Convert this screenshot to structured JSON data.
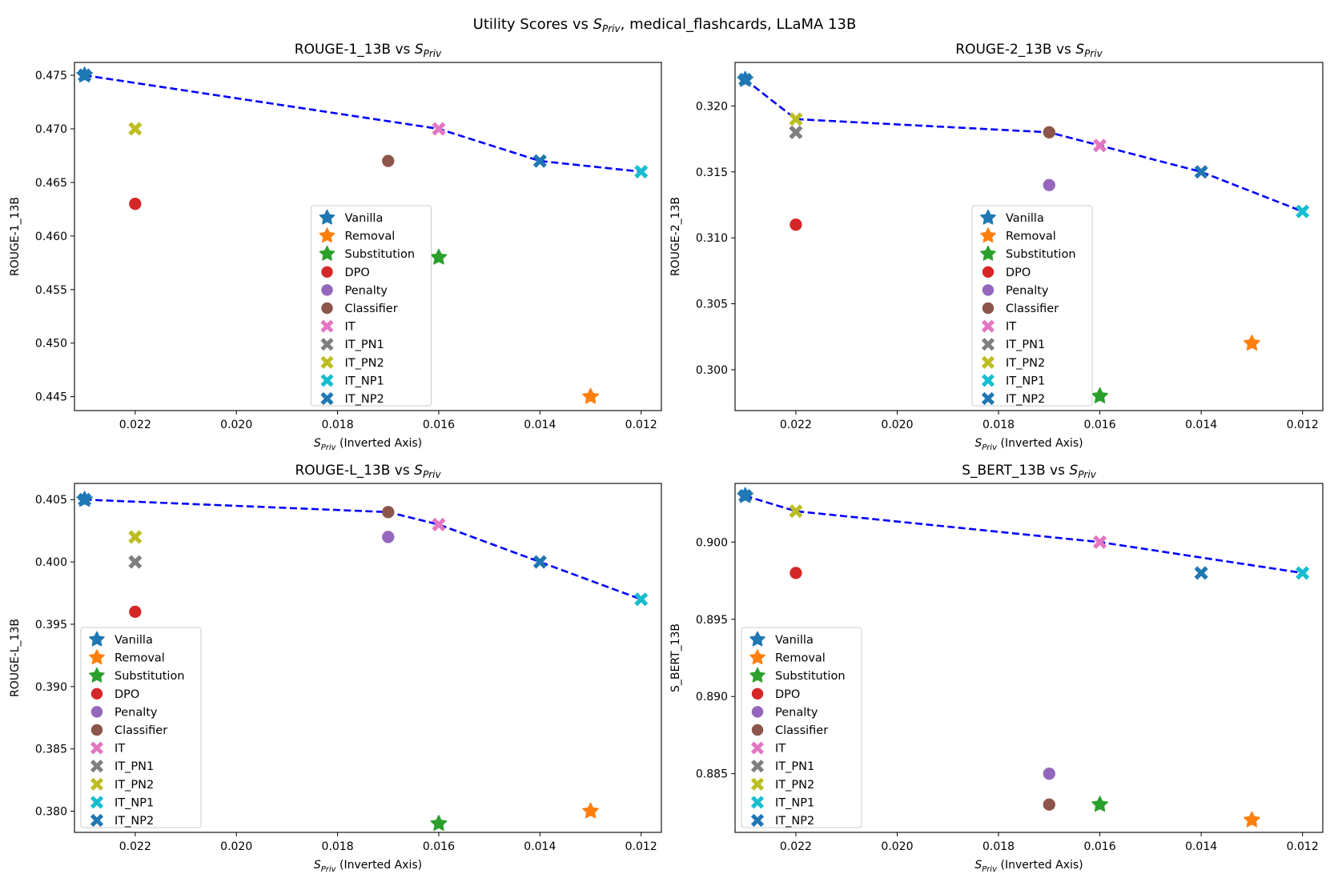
{
  "figure": {
    "title_prefix": "Utility Scores vs ",
    "title_suffix": ", medical_flashcards, LLaMA 13B",
    "s_main": "S",
    "s_sub": "Priv",
    "xlabel_suffix": " (Inverted Axis)",
    "vs": " vs "
  },
  "legend": [
    {
      "label": "Vanilla",
      "marker": "star",
      "color": "#1f77b4"
    },
    {
      "label": "Removal",
      "marker": "star",
      "color": "#ff7f0e"
    },
    {
      "label": "Substitution",
      "marker": "star",
      "color": "#2ca02c"
    },
    {
      "label": "DPO",
      "marker": "circle",
      "color": "#d62728"
    },
    {
      "label": "Penalty",
      "marker": "circle",
      "color": "#9467bd"
    },
    {
      "label": "Classifier",
      "marker": "circle",
      "color": "#8c564b"
    },
    {
      "label": "IT",
      "marker": "x",
      "color": "#e377c2"
    },
    {
      "label": "IT_PN1",
      "marker": "x",
      "color": "#7f7f7f"
    },
    {
      "label": "IT_PN2",
      "marker": "x",
      "color": "#bcbd22"
    },
    {
      "label": "IT_NP1",
      "marker": "x",
      "color": "#17becf"
    },
    {
      "label": "IT_NP2",
      "marker": "x",
      "color": "#1f77b4"
    }
  ],
  "frontier_color": "#0000ff",
  "chart_data": [
    {
      "type": "scatter",
      "metric": "ROUGE-1_13B",
      "ylabel": "ROUGE-1_13B",
      "xlim": [
        0.0232,
        0.0116
      ],
      "ylim": [
        0.4437,
        0.4762
      ],
      "xticks": [
        0.022,
        0.02,
        0.018,
        0.016,
        0.014,
        0.012
      ],
      "xticklabels": [
        "0.022",
        "0.020",
        "0.018",
        "0.016",
        "0.014",
        "0.012"
      ],
      "yticks": [
        0.445,
        0.45,
        0.455,
        0.46,
        0.465,
        0.47,
        0.475
      ],
      "yticklabels": [
        "0.445",
        "0.450",
        "0.455",
        "0.460",
        "0.465",
        "0.470",
        "0.475"
      ],
      "legend_loc": "lower center",
      "points": [
        {
          "series": "Vanilla",
          "x": 0.023,
          "y": 0.475
        },
        {
          "series": "Removal",
          "x": 0.013,
          "y": 0.445
        },
        {
          "series": "Substitution",
          "x": 0.016,
          "y": 0.458
        },
        {
          "series": "DPO",
          "x": 0.022,
          "y": 0.463
        },
        {
          "series": "Classifier",
          "x": 0.017,
          "y": 0.467
        },
        {
          "series": "IT",
          "x": 0.016,
          "y": 0.47
        },
        {
          "series": "IT_PN2",
          "x": 0.022,
          "y": 0.47
        },
        {
          "series": "IT_NP1",
          "x": 0.012,
          "y": 0.466
        },
        {
          "series": "IT_NP2",
          "x": 0.023,
          "y": 0.475
        },
        {
          "series": "IT_NP2",
          "x": 0.014,
          "y": 0.467
        }
      ],
      "frontier": [
        [
          0.023,
          0.475
        ],
        [
          0.016,
          0.47
        ],
        [
          0.014,
          0.467
        ],
        [
          0.012,
          0.466
        ]
      ]
    },
    {
      "type": "scatter",
      "metric": "ROUGE-2_13B",
      "ylabel": "ROUGE-2_13B",
      "xlim": [
        0.0232,
        0.0116
      ],
      "ylim": [
        0.2969,
        0.3233
      ],
      "xticks": [
        0.022,
        0.02,
        0.018,
        0.016,
        0.014,
        0.012
      ],
      "xticklabels": [
        "0.022",
        "0.020",
        "0.018",
        "0.016",
        "0.014",
        "0.012"
      ],
      "yticks": [
        0.3,
        0.305,
        0.31,
        0.315,
        0.32
      ],
      "yticklabels": [
        "0.300",
        "0.305",
        "0.310",
        "0.315",
        "0.320"
      ],
      "legend_loc": "lower center",
      "points": [
        {
          "series": "Vanilla",
          "x": 0.023,
          "y": 0.322
        },
        {
          "series": "Removal",
          "x": 0.013,
          "y": 0.302
        },
        {
          "series": "Substitution",
          "x": 0.016,
          "y": 0.298
        },
        {
          "series": "DPO",
          "x": 0.022,
          "y": 0.311
        },
        {
          "series": "Penalty",
          "x": 0.017,
          "y": 0.314
        },
        {
          "series": "Classifier",
          "x": 0.017,
          "y": 0.318
        },
        {
          "series": "IT",
          "x": 0.016,
          "y": 0.317
        },
        {
          "series": "IT_PN1",
          "x": 0.022,
          "y": 0.318
        },
        {
          "series": "IT_PN2",
          "x": 0.022,
          "y": 0.319
        },
        {
          "series": "IT_NP1",
          "x": 0.012,
          "y": 0.312
        },
        {
          "series": "IT_NP2",
          "x": 0.023,
          "y": 0.322
        },
        {
          "series": "IT_NP2",
          "x": 0.014,
          "y": 0.315
        }
      ],
      "frontier": [
        [
          0.023,
          0.322
        ],
        [
          0.022,
          0.319
        ],
        [
          0.017,
          0.318
        ],
        [
          0.016,
          0.317
        ],
        [
          0.014,
          0.315
        ],
        [
          0.012,
          0.312
        ]
      ]
    },
    {
      "type": "scatter",
      "metric": "ROUGE-L_13B",
      "ylabel": "ROUGE-L_13B",
      "xlim": [
        0.0232,
        0.0116
      ],
      "ylim": [
        0.3783,
        0.4063
      ],
      "xticks": [
        0.022,
        0.02,
        0.018,
        0.016,
        0.014,
        0.012
      ],
      "xticklabels": [
        "0.022",
        "0.020",
        "0.018",
        "0.016",
        "0.014",
        "0.012"
      ],
      "yticks": [
        0.38,
        0.385,
        0.39,
        0.395,
        0.4,
        0.405
      ],
      "yticklabels": [
        "0.380",
        "0.385",
        "0.390",
        "0.395",
        "0.400",
        "0.405"
      ],
      "legend_loc": "lower left",
      "points": [
        {
          "series": "Vanilla",
          "x": 0.023,
          "y": 0.405
        },
        {
          "series": "Removal",
          "x": 0.013,
          "y": 0.38
        },
        {
          "series": "Substitution",
          "x": 0.016,
          "y": 0.379
        },
        {
          "series": "DPO",
          "x": 0.022,
          "y": 0.396
        },
        {
          "series": "Penalty",
          "x": 0.017,
          "y": 0.402
        },
        {
          "series": "Classifier",
          "x": 0.017,
          "y": 0.404
        },
        {
          "series": "IT",
          "x": 0.016,
          "y": 0.403
        },
        {
          "series": "IT_PN1",
          "x": 0.022,
          "y": 0.4
        },
        {
          "series": "IT_PN2",
          "x": 0.022,
          "y": 0.402
        },
        {
          "series": "IT_NP1",
          "x": 0.012,
          "y": 0.397
        },
        {
          "series": "IT_NP2",
          "x": 0.023,
          "y": 0.405
        },
        {
          "series": "IT_NP2",
          "x": 0.014,
          "y": 0.4
        }
      ],
      "frontier": [
        [
          0.023,
          0.405
        ],
        [
          0.017,
          0.404
        ],
        [
          0.016,
          0.403
        ],
        [
          0.014,
          0.4
        ],
        [
          0.012,
          0.397
        ]
      ]
    },
    {
      "type": "scatter",
      "metric": "S_BERT_13B",
      "ylabel": "S_BERT_13B",
      "xlim": [
        0.0232,
        0.0116
      ],
      "ylim": [
        0.8812,
        0.9038
      ],
      "xticks": [
        0.022,
        0.02,
        0.018,
        0.016,
        0.014,
        0.012
      ],
      "xticklabels": [
        "0.022",
        "0.020",
        "0.018",
        "0.016",
        "0.014",
        "0.012"
      ],
      "yticks": [
        0.885,
        0.89,
        0.895,
        0.9
      ],
      "yticklabels": [
        "0.885",
        "0.890",
        "0.895",
        "0.900"
      ],
      "legend_loc": "lower left",
      "points": [
        {
          "series": "Vanilla",
          "x": 0.023,
          "y": 0.903
        },
        {
          "series": "Removal",
          "x": 0.013,
          "y": 0.882
        },
        {
          "series": "Substitution",
          "x": 0.016,
          "y": 0.883
        },
        {
          "series": "DPO",
          "x": 0.022,
          "y": 0.898
        },
        {
          "series": "Penalty",
          "x": 0.017,
          "y": 0.885
        },
        {
          "series": "Classifier",
          "x": 0.017,
          "y": 0.883
        },
        {
          "series": "IT",
          "x": 0.016,
          "y": 0.9
        },
        {
          "series": "IT_PN2",
          "x": 0.022,
          "y": 0.902
        },
        {
          "series": "IT_NP1",
          "x": 0.012,
          "y": 0.898
        },
        {
          "series": "IT_NP2",
          "x": 0.023,
          "y": 0.903
        },
        {
          "series": "IT_NP2",
          "x": 0.014,
          "y": 0.898
        }
      ],
      "frontier": [
        [
          0.023,
          0.903
        ],
        [
          0.022,
          0.902
        ],
        [
          0.016,
          0.9
        ],
        [
          0.012,
          0.898
        ]
      ]
    }
  ]
}
